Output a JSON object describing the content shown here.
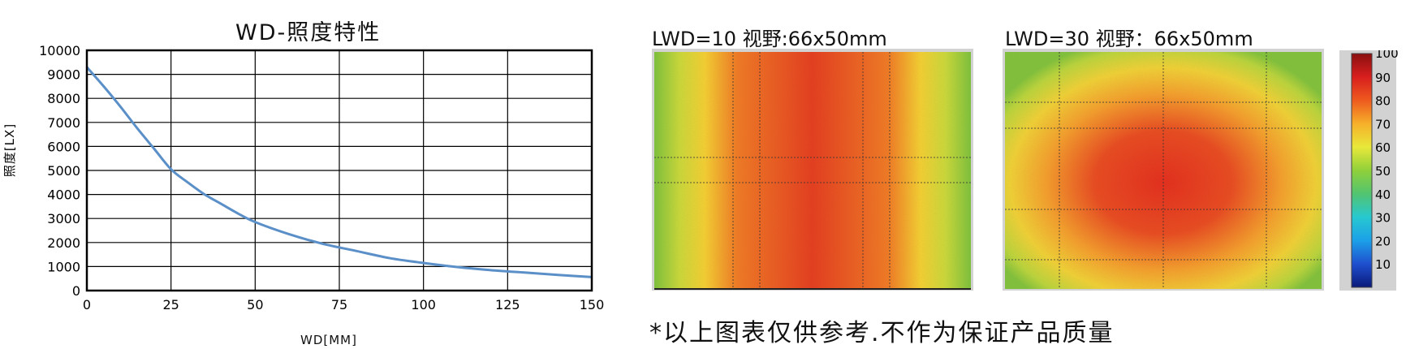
{
  "chart_data": [
    {
      "type": "line",
      "title": "WD-照度特性",
      "xlabel": "WD[MM]",
      "ylabel": "照度[LX]",
      "xlim": [
        0,
        150
      ],
      "ylim": [
        0,
        10000
      ],
      "grid": true,
      "x_ticks": [
        "0",
        "25",
        "50",
        "75",
        "100",
        "125",
        "150"
      ],
      "y_ticks": [
        "0",
        "1000",
        "2000",
        "3000",
        "4000",
        "5000",
        "6000",
        "7000",
        "8000",
        "9000",
        "10000"
      ],
      "series": [
        {
          "name": "照度",
          "color": "#5a8fc8",
          "x": [
            0,
            5,
            10,
            15,
            20,
            25,
            30,
            35,
            40,
            45,
            50,
            60,
            70,
            80,
            90,
            100,
            110,
            120,
            130,
            140,
            150
          ],
          "y": [
            9300,
            8500,
            7650,
            6750,
            5900,
            5050,
            4500,
            4000,
            3600,
            3200,
            2850,
            2350,
            1950,
            1650,
            1350,
            1150,
            980,
            850,
            750,
            650,
            560
          ]
        }
      ]
    },
    {
      "type": "heatmap",
      "title": "LWD=10  视野:66x50mm",
      "pattern": "vertical-band",
      "center_value": 85,
      "edge_value": 50
    },
    {
      "type": "heatmap",
      "title": "LWD=30  视野：66x50mm",
      "pattern": "radial",
      "center_value": 88,
      "edge_value": 50
    }
  ],
  "colorbar": {
    "ticks": [
      "100",
      "90",
      "80",
      "70",
      "60",
      "50",
      "40",
      "30",
      "20",
      "10"
    ],
    "colors": [
      "#0a1a7a",
      "#1f4fcf",
      "#1ca0e8",
      "#27c8d0",
      "#52c470",
      "#8fd03a",
      "#e8e83a",
      "#f6b02a",
      "#ee5a1e",
      "#d81e1e",
      "#8a1010"
    ]
  },
  "disclaimer": "*以上图表仅供参考.不作为保证产品质量"
}
